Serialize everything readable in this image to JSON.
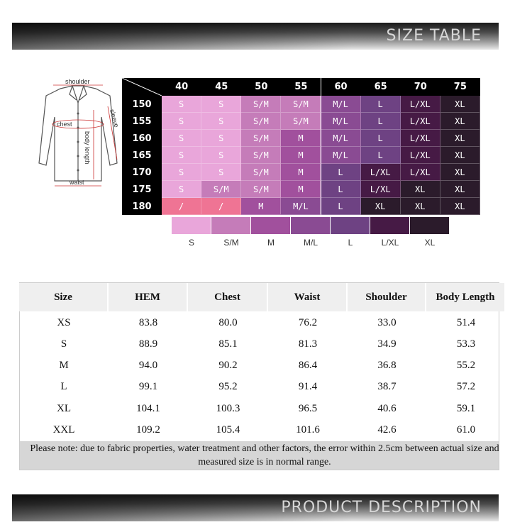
{
  "header": {
    "title": "SIZE TABLE"
  },
  "diagram": {
    "shoulder": "shoulder",
    "chest": "chest",
    "sleeve": "sleeve",
    "body_length": "body length",
    "waist": "waist"
  },
  "size_grid": {
    "columns": [
      "40",
      "45",
      "50",
      "55",
      "60",
      "65",
      "70",
      "75"
    ],
    "rows": [
      {
        "height": "150",
        "sizes": [
          "S",
          "S",
          "S/M",
          "S/M",
          "M/L",
          "L",
          "L/XL",
          "XL"
        ]
      },
      {
        "height": "155",
        "sizes": [
          "S",
          "S",
          "S/M",
          "S/M",
          "M/L",
          "L",
          "L/XL",
          "XL"
        ]
      },
      {
        "height": "160",
        "sizes": [
          "S",
          "S",
          "S/M",
          "M",
          "M/L",
          "L",
          "L/XL",
          "XL"
        ]
      },
      {
        "height": "165",
        "sizes": [
          "S",
          "S",
          "S/M",
          "M",
          "M/L",
          "L",
          "L/XL",
          "XL"
        ]
      },
      {
        "height": "170",
        "sizes": [
          "S",
          "S",
          "S/M",
          "M",
          "L",
          "L/XL",
          "L/XL",
          "XL"
        ]
      },
      {
        "height": "175",
        "sizes": [
          "S",
          "S/M",
          "S/M",
          "M",
          "L",
          "L/XL",
          "XL",
          "XL"
        ]
      },
      {
        "height": "180",
        "sizes": [
          "/",
          "/",
          "M",
          "M/L",
          "L",
          "XL",
          "XL",
          "XL"
        ]
      }
    ],
    "legend": [
      {
        "label": "S",
        "color": "#e9a6da"
      },
      {
        "label": "S/M",
        "color": "#c57cb9"
      },
      {
        "label": "M",
        "color": "#a1509d"
      },
      {
        "label": "M/L",
        "color": "#8a4b93"
      },
      {
        "label": "L",
        "color": "#6e4283"
      },
      {
        "label": "L/XL",
        "color": "#461a45"
      },
      {
        "label": "XL",
        "color": "#2b1b2b"
      }
    ],
    "slash_color": "#ef7494"
  },
  "measurements": {
    "columns": [
      "Size",
      "HEM",
      "Chest",
      "Waist",
      "Shoulder",
      "Body Length"
    ],
    "rows": [
      [
        "XS",
        "83.8",
        "80.0",
        "76.2",
        "33.0",
        "51.4"
      ],
      [
        "S",
        "88.9",
        "85.1",
        "81.3",
        "34.9",
        "53.3"
      ],
      [
        "M",
        "94.0",
        "90.2",
        "86.4",
        "36.8",
        "55.2"
      ],
      [
        "L",
        "99.1",
        "95.2",
        "91.4",
        "38.7",
        "57.2"
      ],
      [
        "XL",
        "104.1",
        "100.3",
        "96.5",
        "40.6",
        "59.1"
      ],
      [
        "XXL",
        "109.2",
        "105.4",
        "101.6",
        "42.6",
        "61.0"
      ]
    ],
    "note": "Please note: due to fabric properties, water treatment and other factors, the error within 2.5cm between actual size and measured size is in normal range."
  },
  "footer": {
    "title": "PRODUCT DESCRIPTION"
  }
}
